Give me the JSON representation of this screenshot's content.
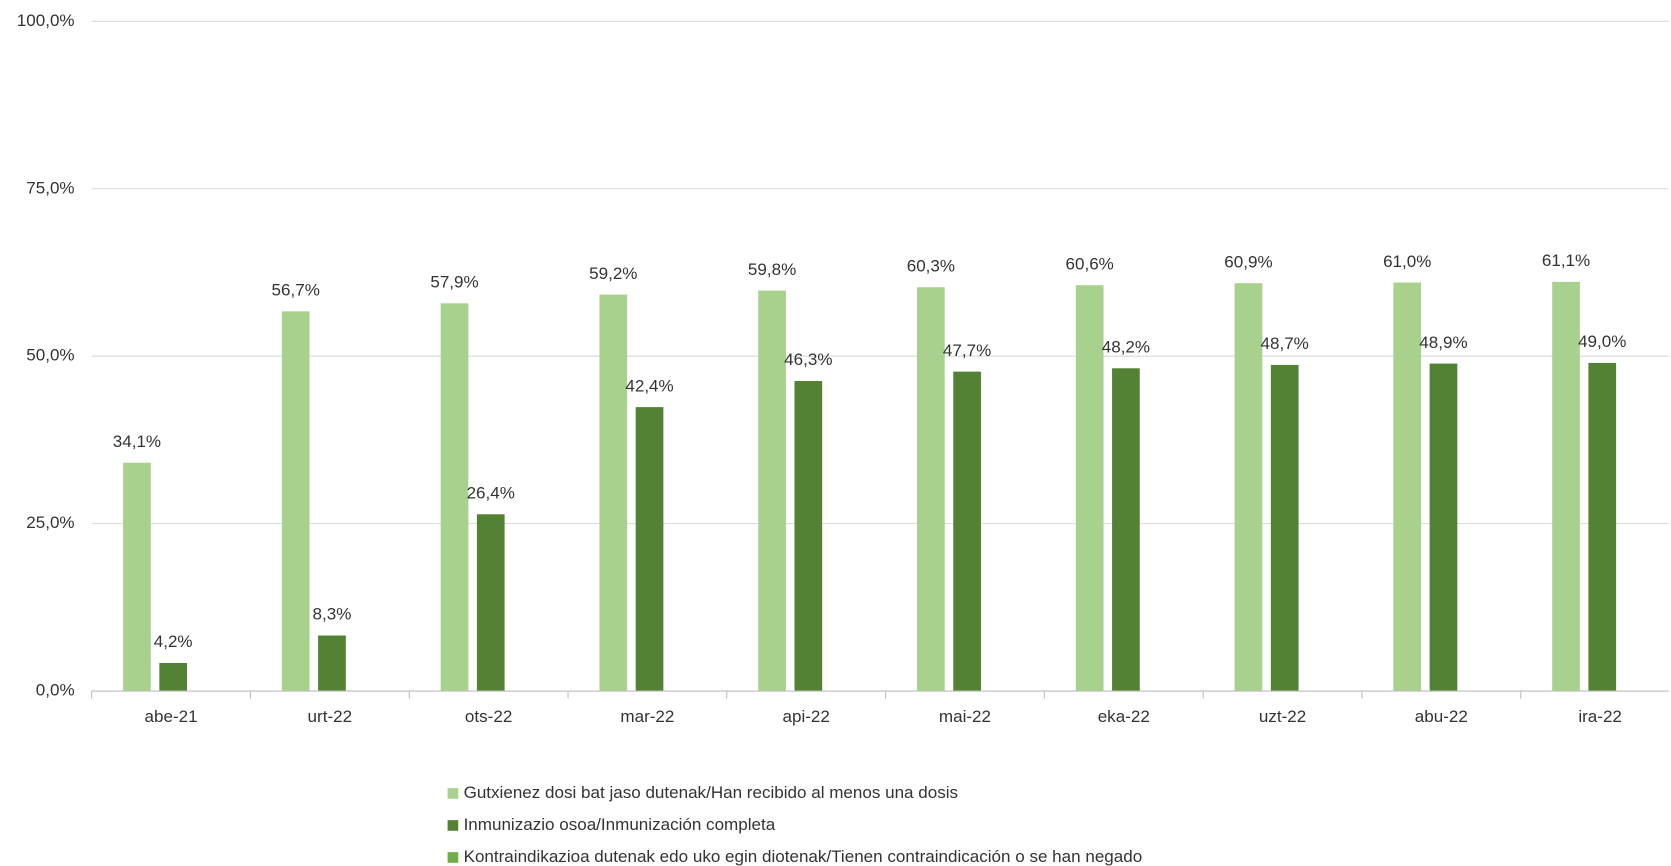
{
  "chart_data": {
    "type": "bar",
    "categories": [
      "abe-21",
      "urt-22",
      "ots-22",
      "mar-22",
      "api-22",
      "mai-22",
      "eka-22",
      "uzt-22",
      "abu-22",
      "ira-22"
    ],
    "series": [
      {
        "name": "Gutxienez dosi bat jaso dutenak/Han recibido al menos una dosis",
        "color": "#a9d18e",
        "values": [
          34.1,
          56.7,
          57.9,
          59.2,
          59.8,
          60.3,
          60.6,
          60.9,
          61.0,
          61.1
        ],
        "value_labels": [
          "34,1%",
          "56,7%",
          "57,9%",
          "59,2%",
          "59,8%",
          "60,3%",
          "60,6%",
          "60,9%",
          "61,0%",
          "61,1%"
        ]
      },
      {
        "name": "Inmunizazio osoa/Inmunización completa",
        "color": "#548235",
        "values": [
          4.2,
          8.3,
          26.4,
          42.4,
          46.3,
          47.7,
          48.2,
          48.7,
          48.9,
          49.0
        ],
        "value_labels": [
          "4,2%",
          "8,3%",
          "26,4%",
          "42,4%",
          "46,3%",
          "47,7%",
          "48,2%",
          "48,7%",
          "48,9%",
          "49,0%"
        ]
      },
      {
        "name": "Kontraindikazioa dutenak edo uko egin diotenak/Tienen contraindicación o se han negado",
        "color": "#70ad47",
        "values": [
          null,
          null,
          null,
          null,
          null,
          null,
          null,
          null,
          null,
          null
        ]
      }
    ],
    "ylim": [
      0,
      100
    ],
    "yticks": [
      {
        "value": 0,
        "label": "0,0%"
      },
      {
        "value": 25,
        "label": "25,0%"
      },
      {
        "value": 50,
        "label": "50,0%"
      },
      {
        "value": 75,
        "label": "75,0%"
      },
      {
        "value": 100,
        "label": "100,0%"
      }
    ],
    "grid": true,
    "legend": "bottom"
  }
}
